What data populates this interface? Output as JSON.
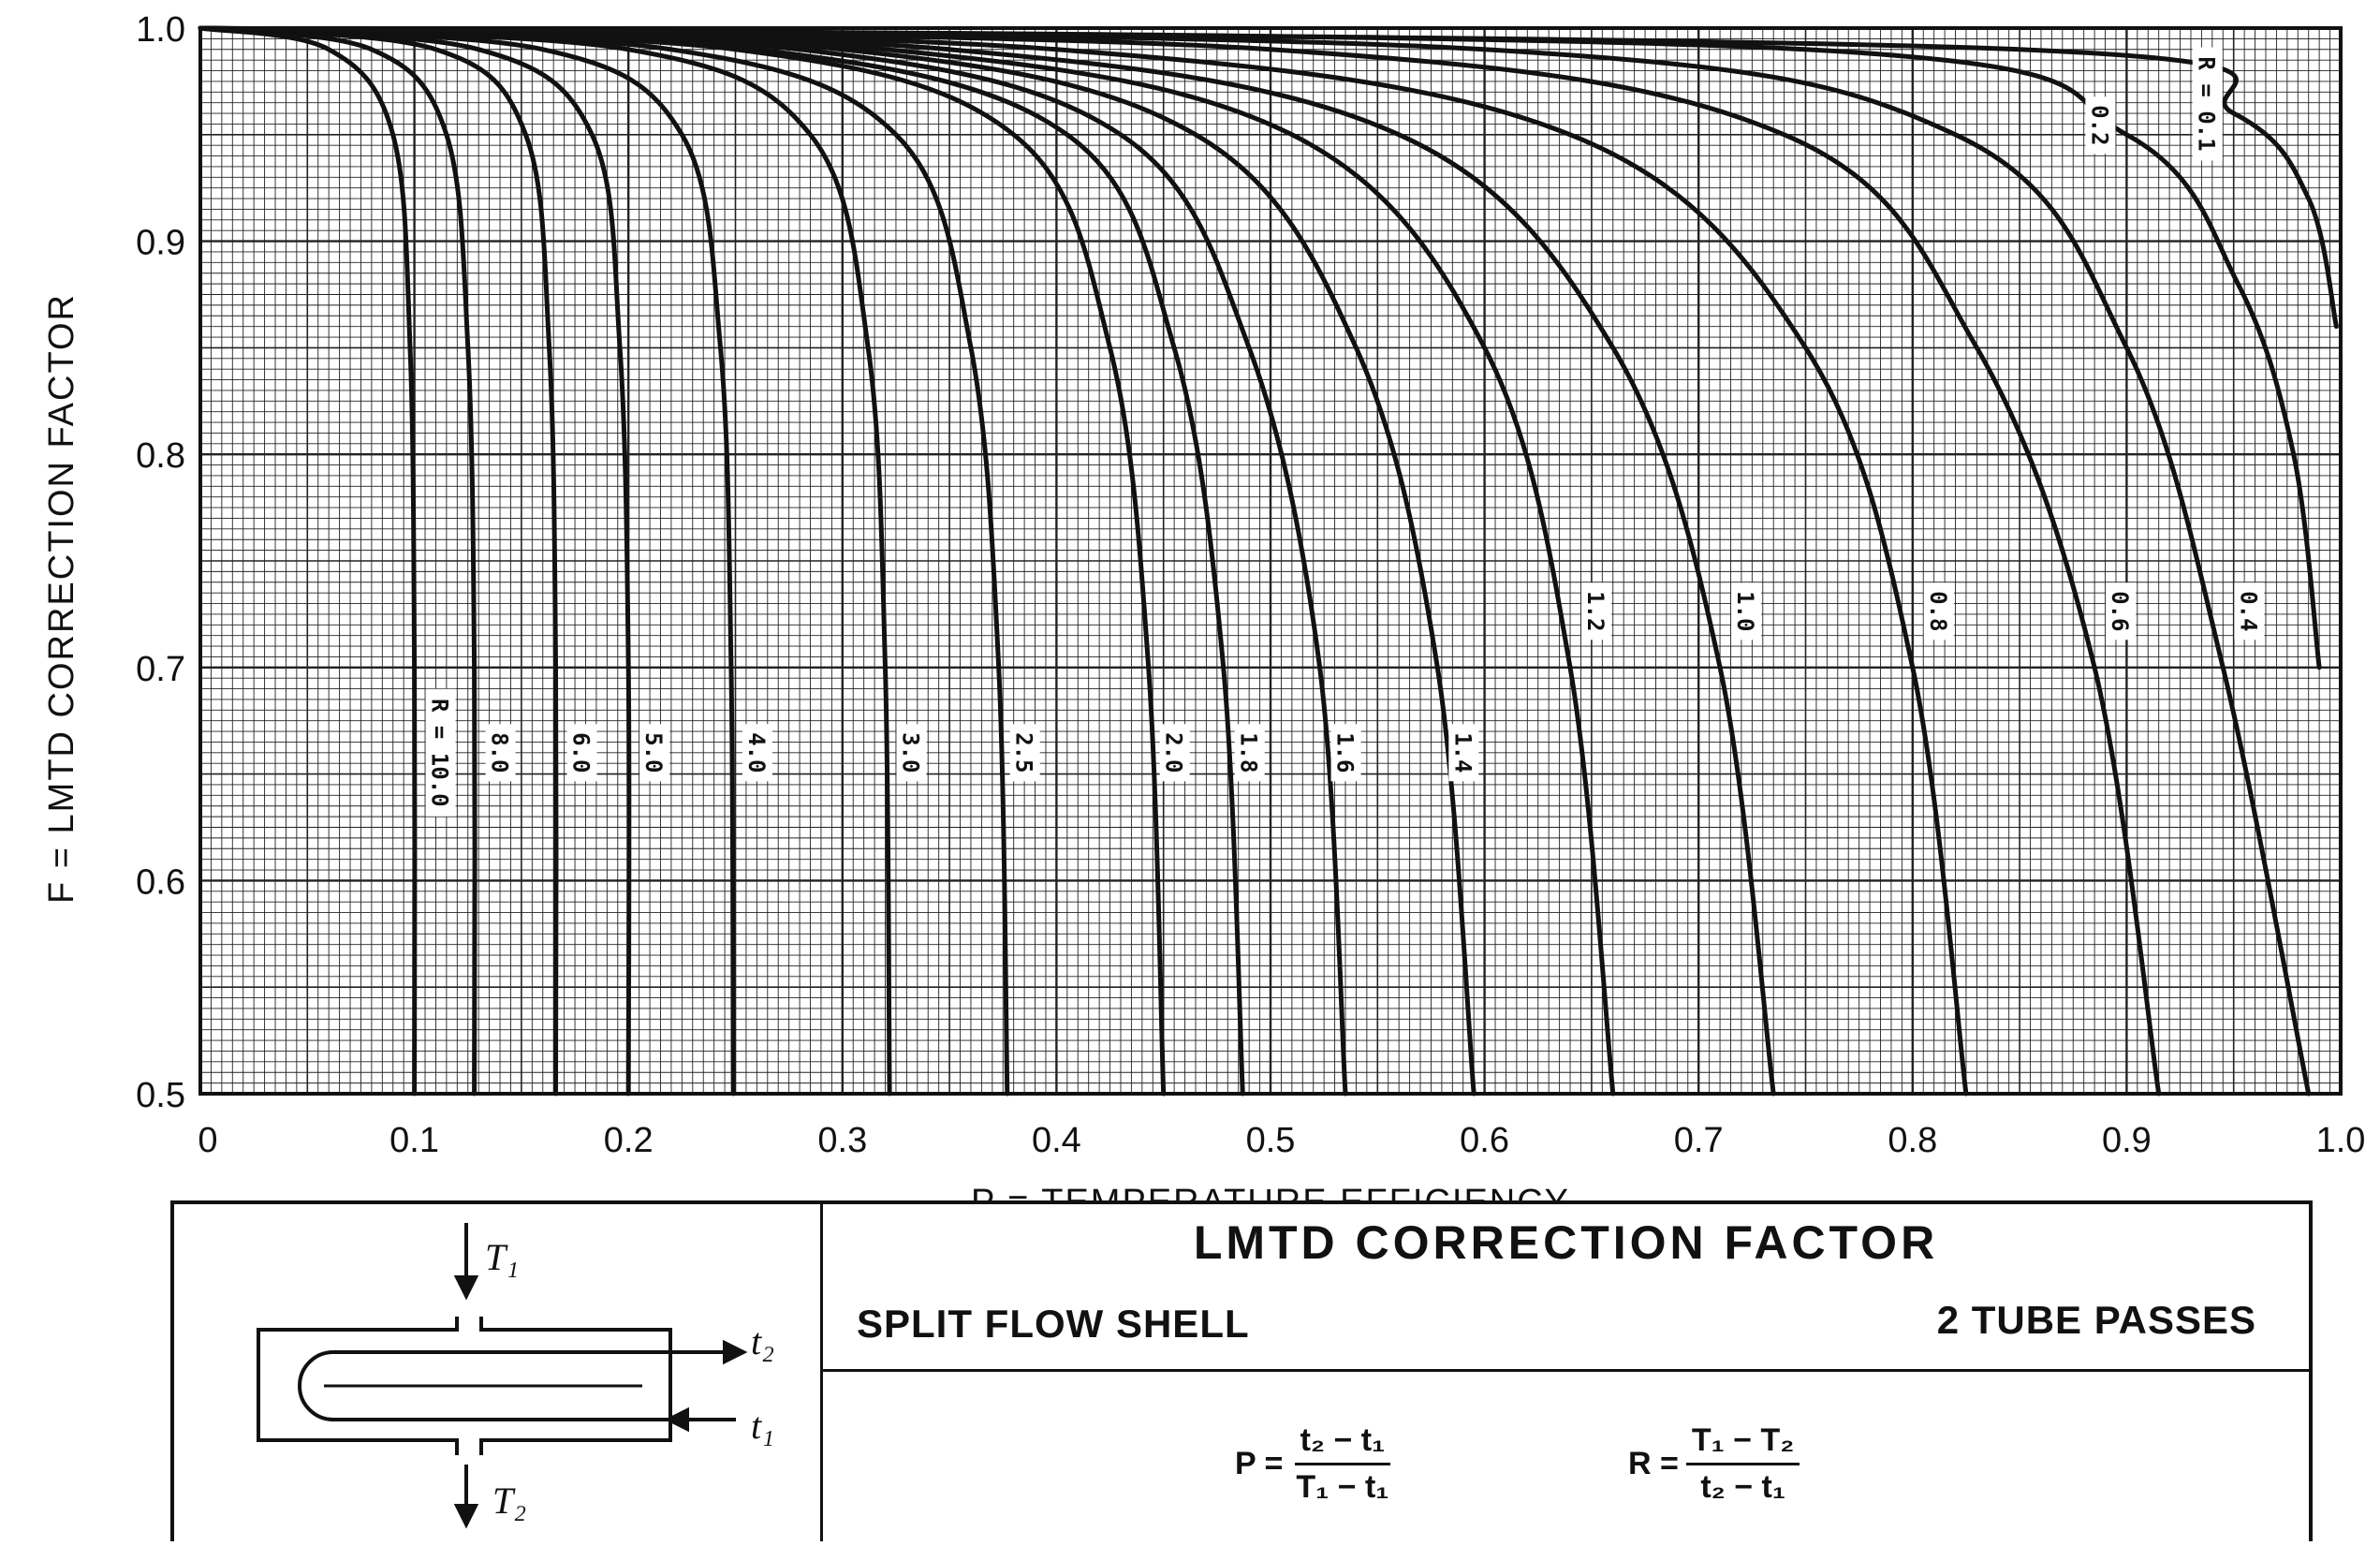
{
  "chart_data": {
    "type": "line",
    "title": "LMTD CORRECTION FACTOR",
    "xlabel": "P = TEMPERATURE EFFICIENCY",
    "ylabel": "F = LMTD CORRECTION FACTOR",
    "xlim": [
      0,
      1.0
    ],
    "ylim": [
      0.5,
      1.0
    ],
    "grid": true,
    "x_tick_labels": [
      "0",
      "0.1",
      "0.2",
      "0.3",
      "0.4",
      "0.5",
      "0.6",
      "0.7",
      "0.8",
      "0.9",
      "1.0"
    ],
    "y_tick_labels": [
      "0.5",
      "0.6",
      "0.7",
      "0.8",
      "0.9",
      "1.0"
    ],
    "series": [
      {
        "name": "R = 10.0",
        "label": "R = 10.0",
        "x": [
          0.0,
          0.06,
          0.09,
          0.098,
          0.1,
          0.1
        ],
        "y": [
          1.0,
          0.99,
          0.95,
          0.85,
          0.7,
          0.5
        ]
      },
      {
        "name": "8.0",
        "label": "8.0",
        "x": [
          0.0,
          0.08,
          0.115,
          0.125,
          0.128,
          0.128
        ],
        "y": [
          1.0,
          0.99,
          0.95,
          0.85,
          0.7,
          0.5
        ]
      },
      {
        "name": "6.0",
        "label": "6.0",
        "x": [
          0.0,
          0.11,
          0.152,
          0.163,
          0.166,
          0.166
        ],
        "y": [
          1.0,
          0.99,
          0.95,
          0.85,
          0.7,
          0.5
        ]
      },
      {
        "name": "5.0",
        "label": "5.0",
        "x": [
          0.0,
          0.13,
          0.183,
          0.196,
          0.2,
          0.2
        ],
        "y": [
          1.0,
          0.99,
          0.95,
          0.85,
          0.7,
          0.5
        ]
      },
      {
        "name": "4.0",
        "label": "4.0",
        "x": [
          0.0,
          0.16,
          0.225,
          0.243,
          0.248,
          0.249
        ],
        "y": [
          1.0,
          0.99,
          0.95,
          0.85,
          0.7,
          0.5
        ]
      },
      {
        "name": "3.0",
        "label": "3.0",
        "x": [
          0.0,
          0.2,
          0.285,
          0.312,
          0.32,
          0.322
        ],
        "y": [
          1.0,
          0.99,
          0.95,
          0.85,
          0.7,
          0.5
        ]
      },
      {
        "name": "2.5",
        "label": "2.5",
        "x": [
          0.0,
          0.22,
          0.325,
          0.36,
          0.373,
          0.377
        ],
        "y": [
          1.0,
          0.99,
          0.95,
          0.85,
          0.7,
          0.5
        ]
      },
      {
        "name": "2.0",
        "label": "2.0",
        "x": [
          0.0,
          0.25,
          0.38,
          0.425,
          0.443,
          0.45
        ],
        "y": [
          1.0,
          0.99,
          0.95,
          0.85,
          0.7,
          0.5
        ]
      },
      {
        "name": "1.8",
        "label": "1.8",
        "x": [
          0.0,
          0.26,
          0.405,
          0.455,
          0.478,
          0.487
        ],
        "y": [
          1.0,
          0.99,
          0.95,
          0.85,
          0.7,
          0.5
        ]
      },
      {
        "name": "1.6",
        "label": "1.6",
        "x": [
          0.0,
          0.28,
          0.43,
          0.49,
          0.523,
          0.535
        ],
        "y": [
          1.0,
          0.99,
          0.95,
          0.85,
          0.7,
          0.5
        ]
      },
      {
        "name": "1.4",
        "label": "1.4",
        "x": [
          0.0,
          0.3,
          0.465,
          0.54,
          0.578,
          0.595
        ],
        "y": [
          1.0,
          0.99,
          0.95,
          0.85,
          0.7,
          0.5
        ]
      },
      {
        "name": "1.2",
        "label": "1.2",
        "x": [
          0.0,
          0.32,
          0.51,
          0.6,
          0.64,
          0.66
        ],
        "y": [
          1.0,
          0.99,
          0.95,
          0.85,
          0.7,
          0.5
        ]
      },
      {
        "name": "1.0",
        "label": "1.0",
        "x": [
          0.0,
          0.35,
          0.56,
          0.66,
          0.71,
          0.735
        ],
        "y": [
          1.0,
          0.99,
          0.95,
          0.85,
          0.7,
          0.5
        ]
      },
      {
        "name": "0.8",
        "label": "0.8",
        "x": [
          0.0,
          0.4,
          0.64,
          0.75,
          0.8,
          0.825
        ],
        "y": [
          1.0,
          0.99,
          0.95,
          0.85,
          0.7,
          0.5
        ]
      },
      {
        "name": "0.6",
        "label": "0.6",
        "x": [
          0.0,
          0.5,
          0.74,
          0.83,
          0.885,
          0.915
        ],
        "y": [
          1.0,
          0.99,
          0.95,
          0.85,
          0.7,
          0.5
        ]
      },
      {
        "name": "0.4",
        "label": "0.4",
        "x": [
          0.0,
          0.6,
          0.82,
          0.9,
          0.945,
          0.985
        ],
        "y": [
          1.0,
          0.99,
          0.95,
          0.85,
          0.7,
          0.5
        ]
      },
      {
        "name": "0.2",
        "label": "0.2",
        "x": [
          0.0,
          0.75,
          0.9,
          0.952,
          0.978,
          0.99
        ],
        "y": [
          1.0,
          0.99,
          0.95,
          0.88,
          0.8,
          0.7
        ]
      },
      {
        "name": "R = 0.1",
        "label": "R = 0.1",
        "x": [
          0.0,
          0.85,
          0.95,
          0.985,
          0.998
        ],
        "y": [
          1.0,
          0.99,
          0.96,
          0.92,
          0.86
        ]
      }
    ]
  },
  "infobox": {
    "title": "LMTD CORRECTION FACTOR",
    "shell_type": "SPLIT FLOW SHELL",
    "tube_passes": "2 TUBE PASSES",
    "formula_p": {
      "lhs": "P =",
      "num": "t₂ − t₁",
      "den": "T₁ − t₁"
    },
    "formula_r": {
      "lhs": "R =",
      "num": "T₁ − T₂",
      "den": "t₂ − t₁"
    },
    "diagram_labels": {
      "T1": "T₁",
      "T2": "T₂",
      "t1": "t₁",
      "t2": "t₂"
    }
  }
}
